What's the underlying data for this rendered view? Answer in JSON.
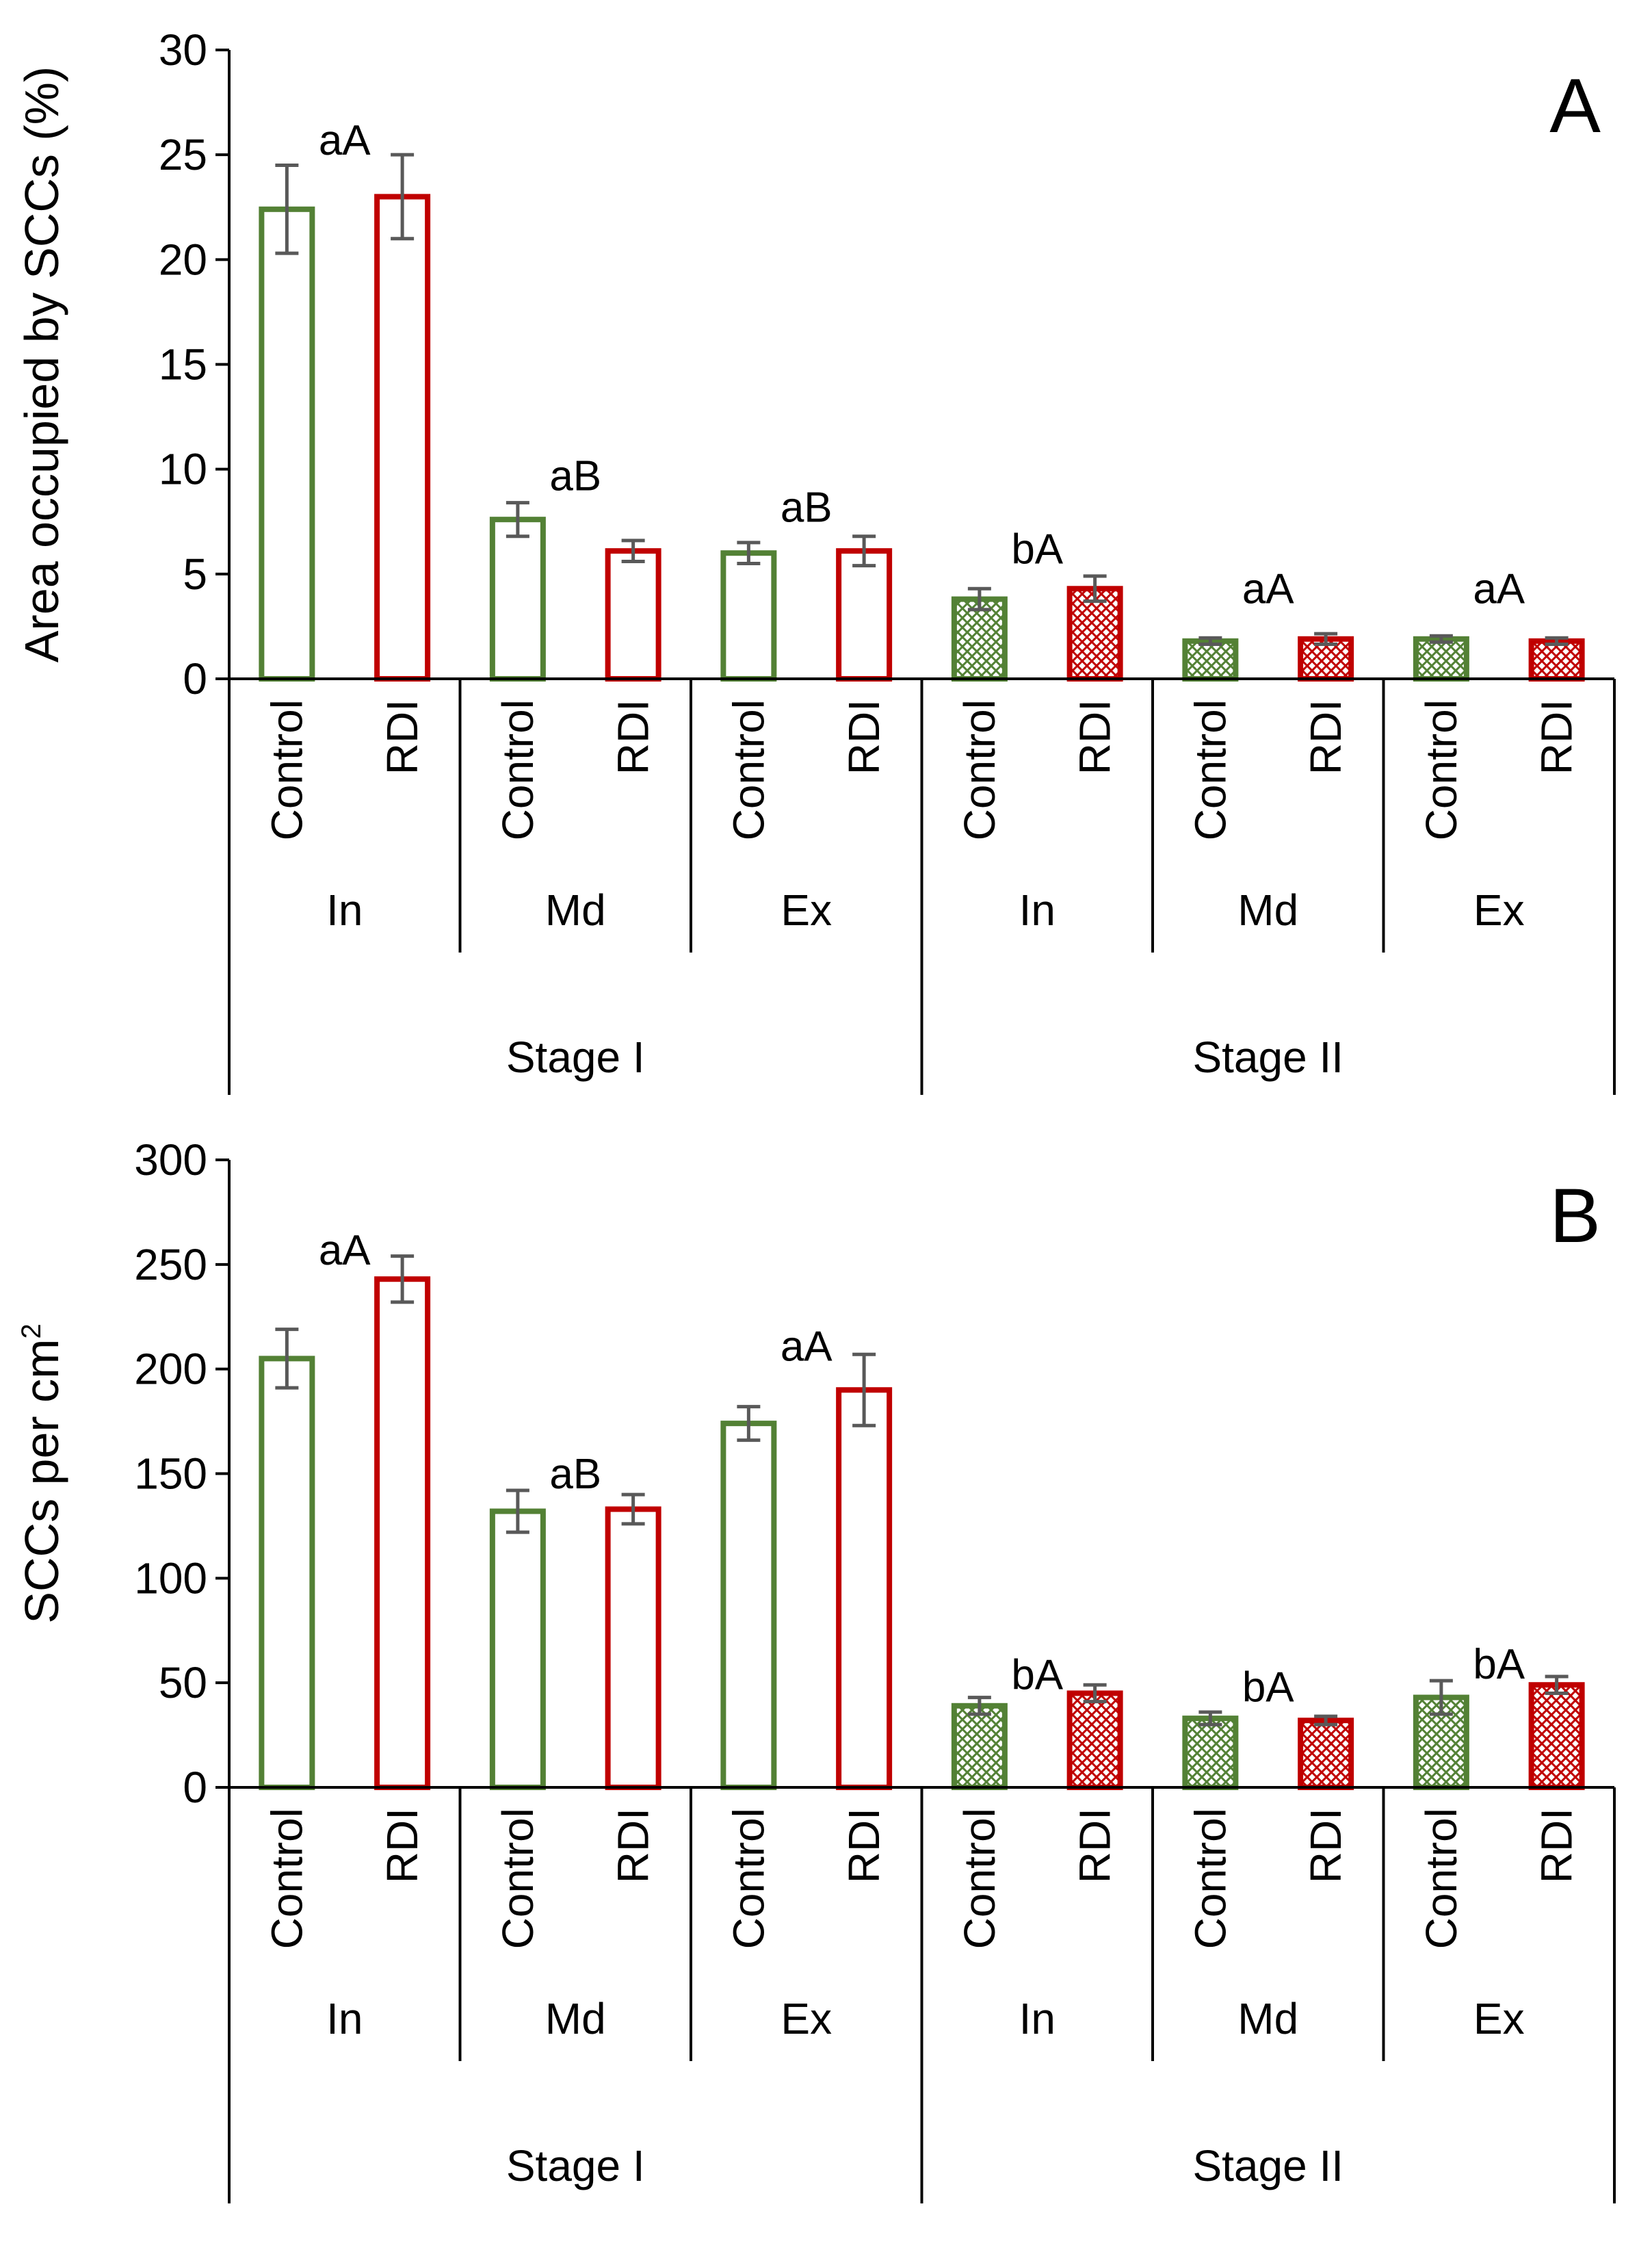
{
  "colors": {
    "control": "#538135",
    "rdi": "#C00000",
    "error_bar": "#595959",
    "axis": "#000000"
  },
  "stages": [
    "Stage I",
    "Stage II"
  ],
  "groups": [
    "In",
    "Md",
    "Ex"
  ],
  "treatments": [
    "Control",
    "RDI"
  ],
  "chart_data": [
    {
      "type": "bar",
      "panel": "A",
      "ylabel": "Area occupied by SCCs (%)",
      "ylim": [
        0,
        30
      ],
      "yticks": [
        0,
        5,
        10,
        15,
        20,
        25,
        30
      ],
      "bars": [
        {
          "stage": "Stage I",
          "group": "In",
          "treatment": "Control",
          "value": 22.4,
          "error": 2.1,
          "fill": "open"
        },
        {
          "stage": "Stage I",
          "group": "In",
          "treatment": "RDI",
          "value": 23.0,
          "error": 2.0,
          "fill": "open"
        },
        {
          "stage": "Stage I",
          "group": "Md",
          "treatment": "Control",
          "value": 7.6,
          "error": 0.8,
          "fill": "open"
        },
        {
          "stage": "Stage I",
          "group": "Md",
          "treatment": "RDI",
          "value": 6.1,
          "error": 0.5,
          "fill": "open"
        },
        {
          "stage": "Stage I",
          "group": "Ex",
          "treatment": "Control",
          "value": 6.0,
          "error": 0.5,
          "fill": "open"
        },
        {
          "stage": "Stage I",
          "group": "Ex",
          "treatment": "RDI",
          "value": 6.1,
          "error": 0.7,
          "fill": "open"
        },
        {
          "stage": "Stage II",
          "group": "In",
          "treatment": "Control",
          "value": 3.8,
          "error": 0.5,
          "fill": "hatched"
        },
        {
          "stage": "Stage II",
          "group": "In",
          "treatment": "RDI",
          "value": 4.3,
          "error": 0.6,
          "fill": "hatched"
        },
        {
          "stage": "Stage II",
          "group": "Md",
          "treatment": "Control",
          "value": 1.8,
          "error": 0.15,
          "fill": "hatched"
        },
        {
          "stage": "Stage II",
          "group": "Md",
          "treatment": "RDI",
          "value": 1.9,
          "error": 0.25,
          "fill": "hatched"
        },
        {
          "stage": "Stage II",
          "group": "Ex",
          "treatment": "Control",
          "value": 1.9,
          "error": 0.15,
          "fill": "hatched"
        },
        {
          "stage": "Stage II",
          "group": "Ex",
          "treatment": "RDI",
          "value": 1.8,
          "error": 0.15,
          "fill": "hatched"
        }
      ],
      "annotations": [
        {
          "text": "aA",
          "group_index": 0,
          "y": 25.0
        },
        {
          "text": "aB",
          "group_index": 1,
          "y": 9.0
        },
        {
          "text": "aB",
          "group_index": 2,
          "y": 7.5
        },
        {
          "text": "bA",
          "group_index": 3,
          "y": 5.5
        },
        {
          "text": "aA",
          "group_index": 4,
          "y": 3.6
        },
        {
          "text": "aA",
          "group_index": 5,
          "y": 3.6
        }
      ]
    },
    {
      "type": "bar",
      "panel": "B",
      "ylabel": "SCCs per cm",
      "ylabel_superscript": "2",
      "ylim": [
        0,
        300
      ],
      "yticks": [
        0,
        50,
        100,
        150,
        200,
        250,
        300
      ],
      "bars": [
        {
          "stage": "Stage I",
          "group": "In",
          "treatment": "Control",
          "value": 205,
          "error": 14,
          "fill": "open"
        },
        {
          "stage": "Stage I",
          "group": "In",
          "treatment": "RDI",
          "value": 243,
          "error": 11,
          "fill": "open"
        },
        {
          "stage": "Stage I",
          "group": "Md",
          "treatment": "Control",
          "value": 132,
          "error": 10,
          "fill": "open"
        },
        {
          "stage": "Stage I",
          "group": "Md",
          "treatment": "RDI",
          "value": 133,
          "error": 7,
          "fill": "open"
        },
        {
          "stage": "Stage I",
          "group": "Ex",
          "treatment": "Control",
          "value": 174,
          "error": 8,
          "fill": "open"
        },
        {
          "stage": "Stage I",
          "group": "Ex",
          "treatment": "RDI",
          "value": 190,
          "error": 17,
          "fill": "open"
        },
        {
          "stage": "Stage II",
          "group": "In",
          "treatment": "Control",
          "value": 39,
          "error": 4,
          "fill": "hatched"
        },
        {
          "stage": "Stage II",
          "group": "In",
          "treatment": "RDI",
          "value": 45,
          "error": 4,
          "fill": "hatched"
        },
        {
          "stage": "Stage II",
          "group": "Md",
          "treatment": "Control",
          "value": 33,
          "error": 3,
          "fill": "hatched"
        },
        {
          "stage": "Stage II",
          "group": "Md",
          "treatment": "RDI",
          "value": 32,
          "error": 2,
          "fill": "hatched"
        },
        {
          "stage": "Stage II",
          "group": "Ex",
          "treatment": "Control",
          "value": 43,
          "error": 8,
          "fill": "hatched"
        },
        {
          "stage": "Stage II",
          "group": "Ex",
          "treatment": "RDI",
          "value": 49,
          "error": 4,
          "fill": "hatched"
        }
      ],
      "annotations": [
        {
          "text": "aA",
          "group_index": 0,
          "y": 250
        },
        {
          "text": "aB",
          "group_index": 1,
          "y": 143
        },
        {
          "text": "aA",
          "group_index": 2,
          "y": 204
        },
        {
          "text": "bA",
          "group_index": 3,
          "y": 47
        },
        {
          "text": "bA",
          "group_index": 4,
          "y": 41
        },
        {
          "text": "bA",
          "group_index": 5,
          "y": 52
        }
      ]
    }
  ]
}
